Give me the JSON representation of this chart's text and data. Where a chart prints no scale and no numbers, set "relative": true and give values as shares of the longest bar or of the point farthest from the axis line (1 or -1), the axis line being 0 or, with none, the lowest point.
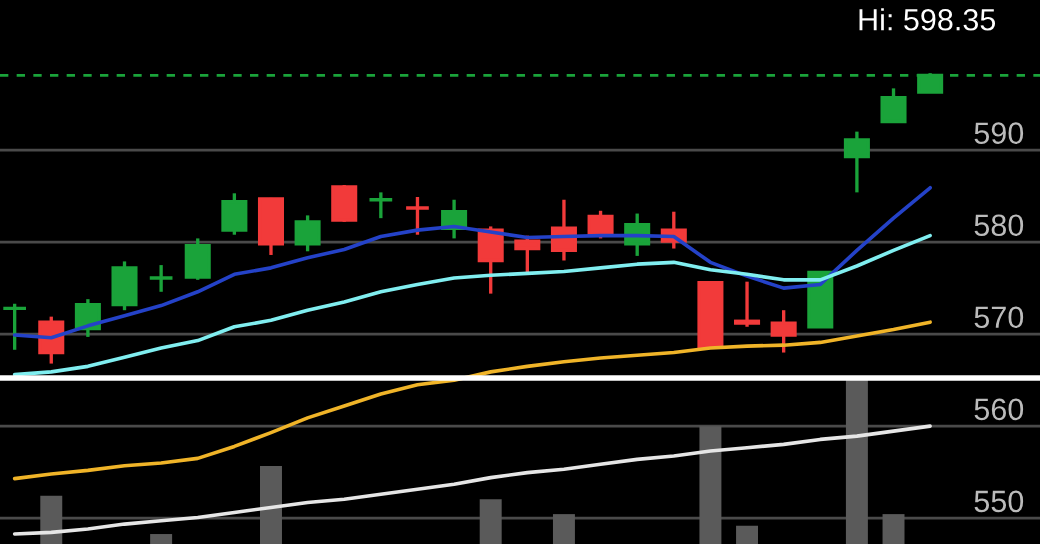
{
  "chart_data": [
    {
      "type": "candlestick",
      "categories": [
        null,
        null,
        null,
        null,
        null,
        null,
        null,
        null,
        null,
        null,
        null,
        null,
        null,
        null,
        null,
        null,
        null,
        null,
        null,
        null,
        null,
        null,
        null,
        null,
        null,
        null
      ],
      "ohlc": [
        [
          572.8,
          573.3,
          568.3,
          572.8
        ],
        [
          571.3,
          571.9,
          566.8,
          568.0
        ],
        [
          570.6,
          573.8,
          569.7,
          573.2
        ],
        [
          573.2,
          577.9,
          572.6,
          577.2
        ],
        [
          576.1,
          577.5,
          574.6,
          576.1
        ],
        [
          576.2,
          580.4,
          575.9,
          579.6
        ],
        [
          581.3,
          585.3,
          580.8,
          584.4
        ],
        [
          584.7,
          584.8,
          578.6,
          579.8
        ],
        [
          579.8,
          582.9,
          579.0,
          582.2
        ],
        [
          586.0,
          586.2,
          582.2,
          582.4
        ],
        [
          584.6,
          585.4,
          582.6,
          584.6
        ],
        [
          583.7,
          584.9,
          580.8,
          583.7
        ],
        [
          581.5,
          584.6,
          580.4,
          583.3
        ],
        [
          581.3,
          581.7,
          574.4,
          578.0
        ],
        [
          580.1,
          580.7,
          576.7,
          579.3
        ],
        [
          581.5,
          584.6,
          578.0,
          579.1
        ],
        [
          582.8,
          583.4,
          580.4,
          580.9
        ],
        [
          579.8,
          583.1,
          578.5,
          581.9
        ],
        [
          581.3,
          583.3,
          579.3,
          580.1
        ],
        [
          575.6,
          575.6,
          568.6,
          568.6
        ],
        [
          571.4,
          575.7,
          570.8,
          571.2
        ],
        [
          571.2,
          572.6,
          568.0,
          569.9
        ],
        [
          570.8,
          576.7,
          570.8,
          576.7
        ],
        [
          589.3,
          592.0,
          585.4,
          591.1
        ],
        [
          593.1,
          596.7,
          593.1,
          595.7
        ],
        [
          596.3,
          598.35,
          596.3,
          598.1
        ]
      ],
      "colors": [
        "#1aa33a",
        "#f23a3a",
        "#1aa33a",
        "#1aa33a",
        "#1aa33a",
        "#1aa33a",
        "#1aa33a",
        "#f23a3a",
        "#1aa33a",
        "#f23a3a",
        "#1aa33a",
        "#f23a3a",
        "#1aa33a",
        "#f23a3a",
        "#f23a3a",
        "#f23a3a",
        "#f23a3a",
        "#1aa33a",
        "#f23a3a",
        "#f23a3a",
        "#f23a3a",
        "#f23a3a",
        "#1aa33a",
        "#1aa33a",
        "#1aa33a",
        "#1aa33a"
      ],
      "series": [
        {
          "type": "line",
          "color": "#2442c8",
          "values": [
            569.9,
            569.6,
            570.9,
            572.0,
            573.1,
            574.6,
            576.5,
            577.2,
            578.3,
            579.2,
            580.6,
            581.3,
            581.7,
            581.1,
            580.5,
            580.6,
            580.7,
            580.7,
            580.6,
            577.8,
            576.3,
            575.0,
            575.4,
            579.1,
            582.6,
            585.9
          ]
        },
        {
          "type": "line",
          "color": "#80eef0",
          "values": [
            565.6,
            565.9,
            566.5,
            567.5,
            568.5,
            569.3,
            570.8,
            571.5,
            572.6,
            573.5,
            574.6,
            575.4,
            576.1,
            576.4,
            576.6,
            576.8,
            577.2,
            577.6,
            577.8,
            577.0,
            576.5,
            575.9,
            575.9,
            577.4,
            579.1,
            580.7
          ]
        },
        {
          "type": "line",
          "color": "#f0b428",
          "values": [
            554.3,
            554.8,
            555.2,
            555.7,
            556.0,
            556.5,
            557.8,
            559.3,
            560.9,
            562.2,
            563.5,
            564.5,
            565.0,
            565.9,
            566.5,
            567.0,
            567.4,
            567.7,
            568.0,
            568.5,
            568.7,
            568.8,
            569.1,
            569.8,
            570.5,
            571.3
          ]
        }
      ],
      "ylim": [
        547.2,
        606.3
      ],
      "yticks": [
        550,
        560,
        570,
        580,
        590
      ],
      "grid": "y",
      "tick_labels": "y",
      "ref_lines": [
        {
          "axis": "y",
          "value": 598.1,
          "label": null,
          "color": "#1aa33a",
          "line_style": "dashed"
        }
      ],
      "annotations": [
        "Hi: 598.35"
      ]
    },
    {
      "type": "bar",
      "relative": true,
      "tick_labels": false,
      "categories": [
        null,
        null,
        null,
        null,
        null,
        null,
        null,
        null,
        null,
        null,
        null,
        null,
        null,
        null,
        null,
        null,
        null,
        null,
        null,
        null,
        null,
        null,
        null,
        null,
        null,
        null
      ],
      "series": [
        {
          "type": "bar",
          "color": "#5a5a5a",
          "values": [
            0,
            0.29,
            0,
            0,
            0.06,
            0,
            0,
            0.47,
            0,
            0,
            0,
            0,
            0,
            0.27,
            0,
            0.18,
            0,
            0,
            0,
            0.71,
            0.11,
            0,
            0,
            1.0,
            0.18,
            0
          ]
        },
        {
          "type": "line",
          "color": "#e6e6e6",
          "values": [
            0.06,
            0.07,
            0.09,
            0.12,
            0.14,
            0.16,
            0.19,
            0.22,
            0.25,
            0.27,
            0.3,
            0.33,
            0.36,
            0.4,
            0.43,
            0.45,
            0.48,
            0.51,
            0.53,
            0.56,
            0.58,
            0.6,
            0.63,
            0.65,
            0.68,
            0.71
          ]
        }
      ]
    }
  ]
}
